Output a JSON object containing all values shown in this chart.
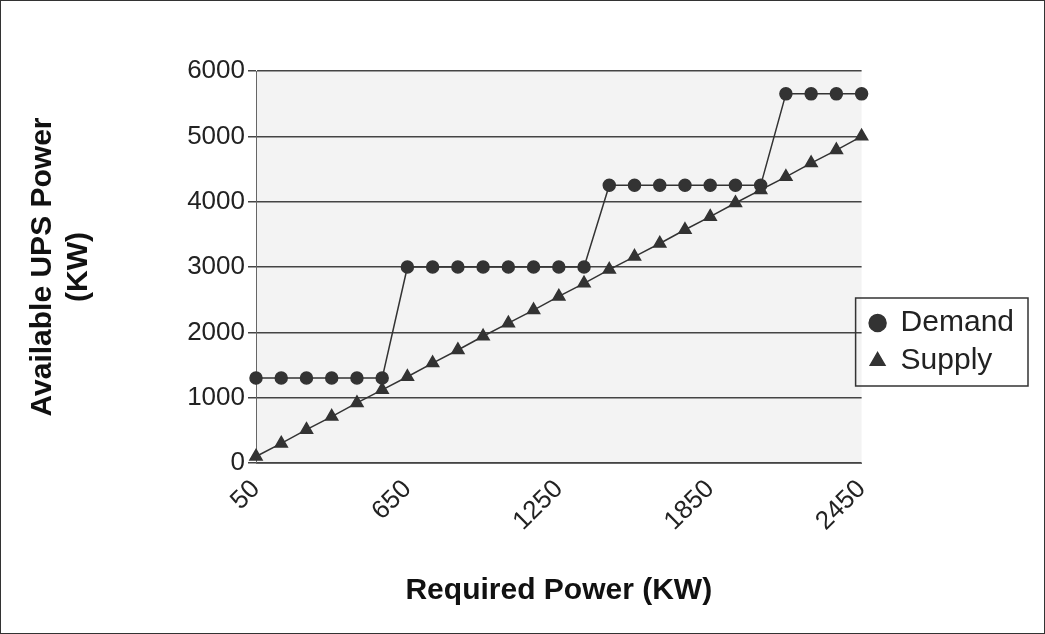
{
  "chart_data": {
    "type": "line",
    "xlabel": "Required Power (KW)",
    "ylabel": "Available UPS Power (KW)",
    "categories": [
      "50",
      null,
      null,
      null,
      null,
      null,
      "650",
      null,
      null,
      null,
      null,
      null,
      "1250",
      null,
      null,
      null,
      null,
      null,
      "1850",
      null,
      null,
      null,
      null,
      null,
      "2450"
    ],
    "series": [
      {
        "name": "Demand",
        "color": "#333333",
        "marker": "circle",
        "values": [
          1300,
          1300,
          1300,
          1300,
          1300,
          1300,
          3000,
          3000,
          3000,
          3000,
          3000,
          3000,
          3000,
          3000,
          4250,
          4250,
          4250,
          4250,
          4250,
          4250,
          4250,
          5650,
          5650,
          5650,
          5650
        ]
      },
      {
        "name": "Supply",
        "color": "#333333",
        "marker": "triangle",
        "values": [
          100,
          300,
          510,
          710,
          920,
          1120,
          1320,
          1530,
          1730,
          1940,
          2140,
          2340,
          2550,
          2750,
          2960,
          3160,
          3360,
          3570,
          3770,
          3980,
          4180,
          4380,
          4590,
          4790,
          5000
        ]
      }
    ],
    "ylim": [
      0,
      6000
    ],
    "yticks": [
      0,
      1000,
      2000,
      3000,
      4000,
      5000,
      6000
    ],
    "grid": "y",
    "legend": "right"
  }
}
